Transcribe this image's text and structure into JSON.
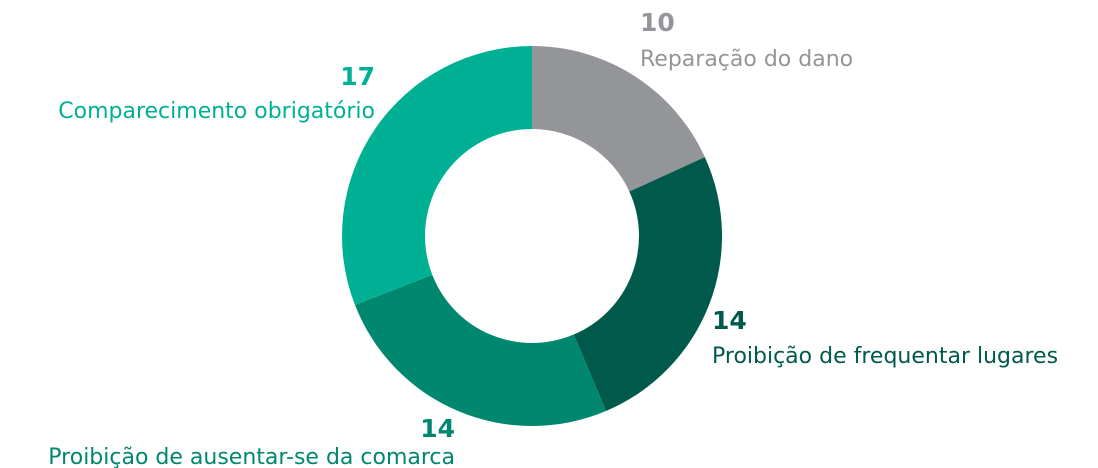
{
  "chart_data": {
    "type": "donut",
    "categories": [
      "Reparação do dano",
      "Proibição de frequentar lugares",
      "Proibição de ausentar-se da comarca",
      "Comparecimento obrigatório"
    ],
    "values": [
      10,
      14,
      14,
      17
    ],
    "colors": [
      "#939598",
      "#005a4b",
      "#00876f",
      "#00b095"
    ]
  }
}
